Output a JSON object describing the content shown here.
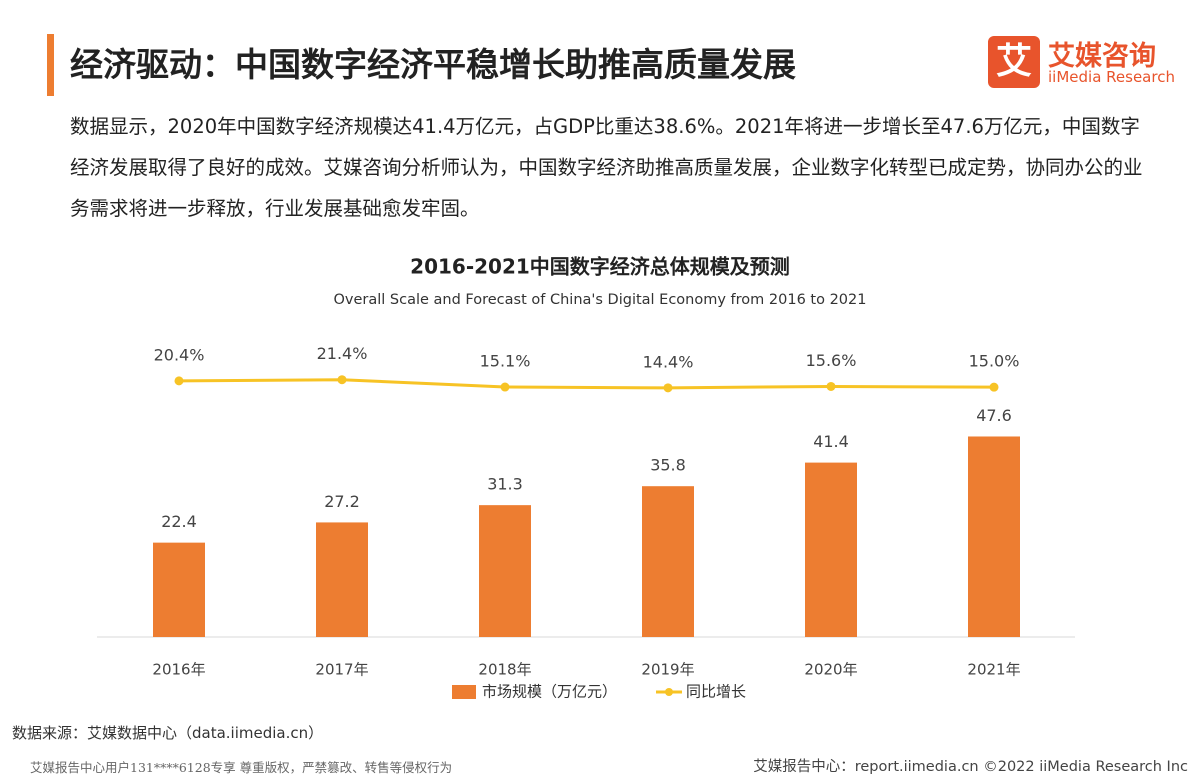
{
  "header": {
    "title": "经济驱动：中国数字经济平稳增长助推高质量发展",
    "logo_mark": "艾",
    "logo_name": "艾媒咨询",
    "logo_sub": "iiMedia Research"
  },
  "body_text": "数据显示，2020年中国数字经济规模达41.4万亿元，占GDP比重达38.6%。2021年将进一步增长至47.6万亿元，中国数字经济发展取得了良好的成效。艾媒咨询分析师认为，中国数字经济助推高质量发展，企业数字化转型已成定势，协同办公的业务需求将进一步释放，行业发展基础愈发牢固。",
  "chart_data": {
    "type": "bar",
    "title": "2016-2021中国数字经济总体规模及预测",
    "subtitle": "Overall Scale and Forecast of China's Digital Economy from 2016 to 2021",
    "categories": [
      "2016年",
      "2017年",
      "2018年",
      "2019年",
      "2020年",
      "2021年"
    ],
    "series": [
      {
        "name": "市场规模（万亿元）",
        "type": "bar",
        "color": "#ED7D31",
        "values": [
          22.4,
          27.2,
          31.3,
          35.8,
          41.4,
          47.6
        ]
      },
      {
        "name": "同比增长",
        "type": "line",
        "axis": "y2",
        "color": "#F7C325",
        "values": [
          20.4,
          21.4,
          15.1,
          14.4,
          15.6,
          15.0
        ],
        "value_labels": [
          "20.4%",
          "21.4%",
          "15.1%",
          "14.4%",
          "15.6%",
          "15.0%"
        ]
      }
    ],
    "ylim": [
      0,
      80
    ],
    "y2lim": [
      -200,
      90
    ],
    "legend": "bottom"
  },
  "source": "数据来源：艾媒数据中心（data.iimedia.cn）",
  "footer": {
    "left": "艾媒报告中心用户131****6128专享 尊重版权，严禁篡改、转售等侵权行为",
    "right": "艾媒报告中心：report.iimedia.cn ©2022 iiMedia Research Inc"
  }
}
